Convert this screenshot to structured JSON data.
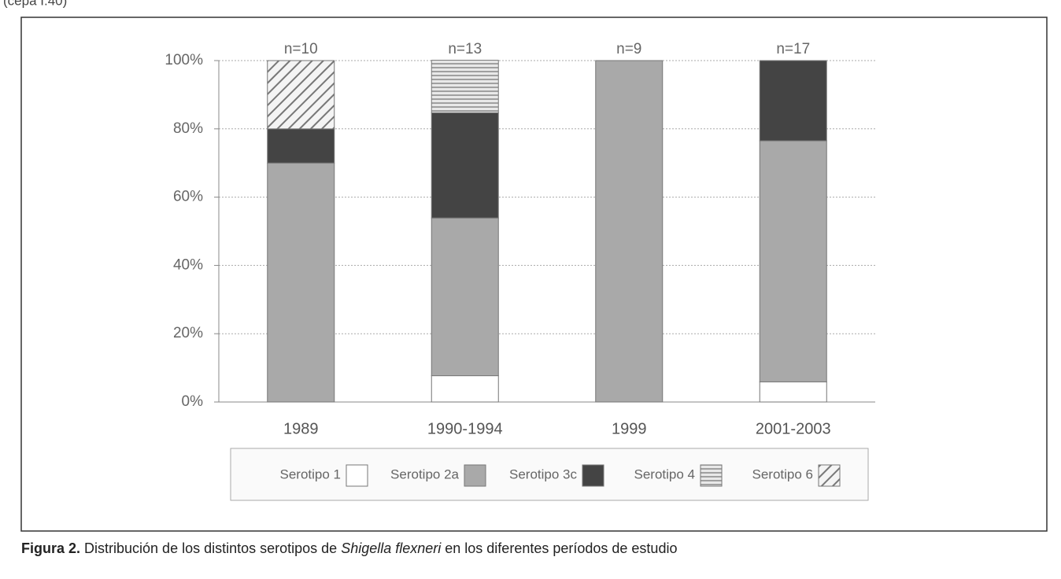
{
  "header": "(cepa I.40)",
  "chart_data": {
    "type": "stacked_bar",
    "categories": [
      "1989",
      "1990-1994",
      "1999",
      "2001-2003"
    ],
    "annotations": [
      "n=10",
      "n=13",
      "n=9",
      "n=17"
    ],
    "series": [
      {
        "name": "Serotipo 1",
        "color": "#ffffff",
        "values": [
          0,
          7.7,
          0,
          5.9
        ]
      },
      {
        "name": "Serotipo 2a",
        "color": "#a9a9a9",
        "values": [
          70,
          46.2,
          100,
          70.6
        ]
      },
      {
        "name": "Serotipo 3c",
        "color": "#444444",
        "values": [
          10,
          30.8,
          0,
          23.5
        ]
      },
      {
        "name": "Serotipo 4",
        "color": "#9a9a9a",
        "hatch": "horizontal",
        "values": [
          0,
          15.4,
          0,
          0
        ]
      },
      {
        "name": "Serotipo 6",
        "color": "#777777",
        "hatch": "diagonal",
        "values": [
          20,
          0,
          0,
          0
        ]
      }
    ],
    "ylim": [
      0,
      100
    ],
    "yticks": [
      {
        "value": 0,
        "label": "0%"
      },
      {
        "value": 20,
        "label": "20%"
      },
      {
        "value": 40,
        "label": "40%"
      },
      {
        "value": 60,
        "label": "60%"
      },
      {
        "value": 80,
        "label": "80%"
      },
      {
        "value": 100,
        "label": "100%"
      }
    ],
    "grid": true,
    "legend": "bottom"
  },
  "caption": {
    "label": "Figura 2.",
    "before": " Distribución de los distintos serotipos de ",
    "italic": "Shigella flexneri",
    "after": " en los diferentes períodos de estudio"
  }
}
